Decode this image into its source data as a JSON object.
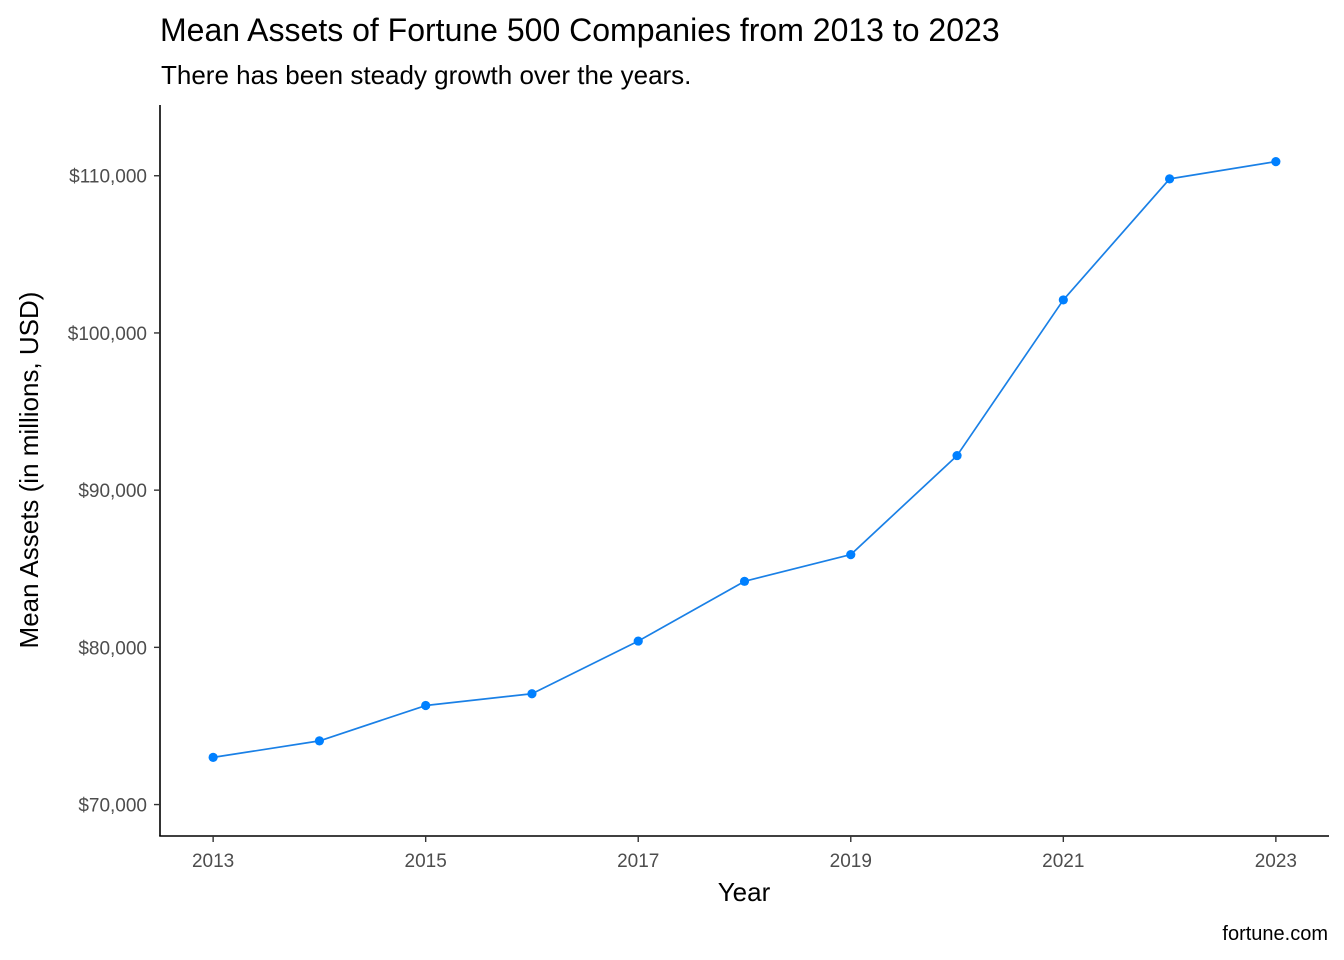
{
  "chart_data": {
    "type": "line",
    "title": "Mean Assets of Fortune 500 Companies from 2013 to 2023",
    "subtitle": "There has been steady growth over the years.",
    "xlabel": "Year",
    "ylabel": "Mean Assets (in millions, USD)",
    "caption": "fortune.com",
    "x": [
      2013,
      2014,
      2015,
      2016,
      2017,
      2018,
      2019,
      2020,
      2021,
      2022,
      2023
    ],
    "series": [
      {
        "values": [
          73000,
          74050,
          76300,
          77050,
          80400,
          84200,
          85900,
          92200,
          102100,
          109800,
          110900
        ]
      }
    ],
    "xlim": [
      2012.5,
      2023.5
    ],
    "ylim": [
      68000,
      114500
    ],
    "x_ticks": [
      2013,
      2015,
      2017,
      2019,
      2021,
      2023
    ],
    "x_tick_labels": [
      "2013",
      "2015",
      "2017",
      "2019",
      "2021",
      "2023"
    ],
    "y_ticks": [
      70000,
      80000,
      90000,
      100000,
      110000
    ],
    "y_tick_labels": [
      "$70,000",
      "$80,000",
      "$90,000",
      "$100,000",
      "$110,000"
    ],
    "grid": false,
    "legend": "none",
    "colors": {
      "series": "#1a80e6",
      "points": "#0080ff"
    }
  }
}
